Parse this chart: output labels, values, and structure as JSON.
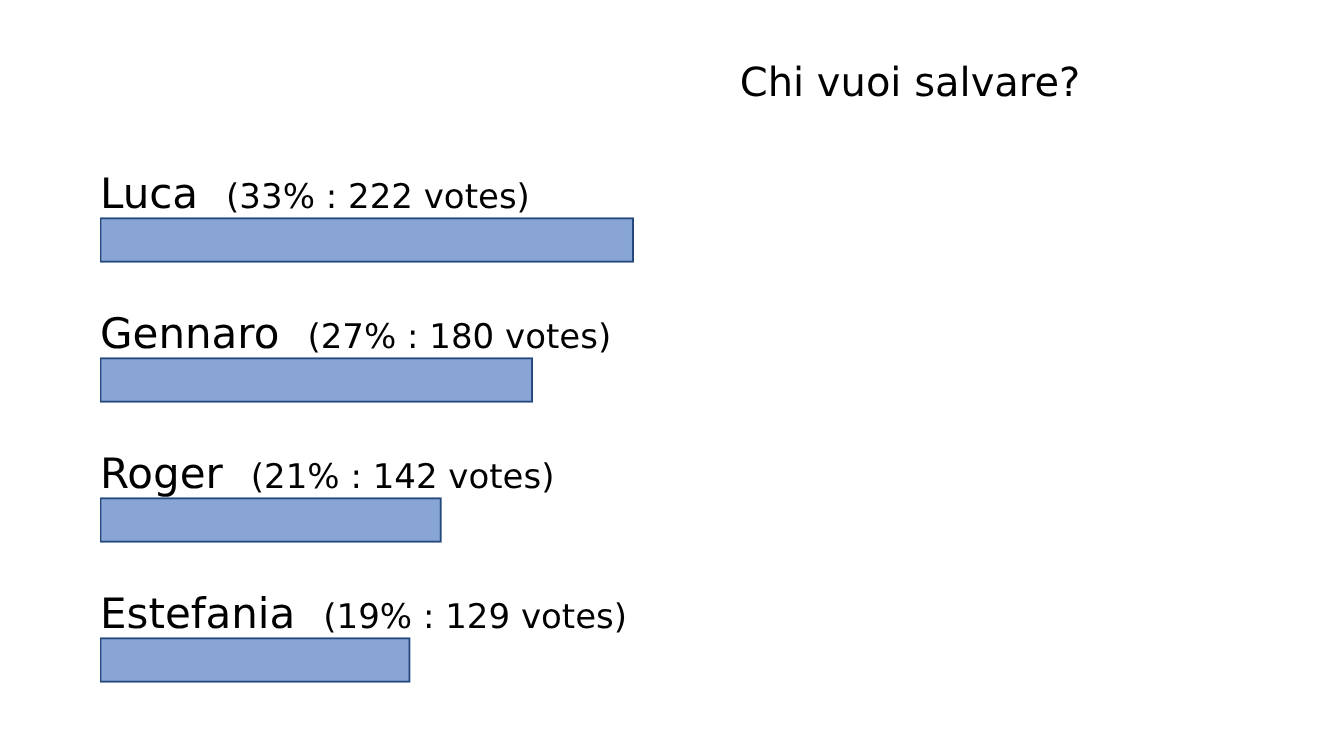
{
  "chart_data": {
    "type": "bar",
    "orientation": "horizontal",
    "title": "Chi vuoi salvare?",
    "categories": [
      "Luca",
      "Gennaro",
      "Roger",
      "Estefania"
    ],
    "values": [
      222,
      180,
      142,
      129
    ],
    "value_labels": [
      "(33% : 222 votes)",
      "(27% : 180 votes)",
      "(21% : 142 votes)",
      "(19% : 129 votes)"
    ],
    "color": "#88a5d6"
  }
}
